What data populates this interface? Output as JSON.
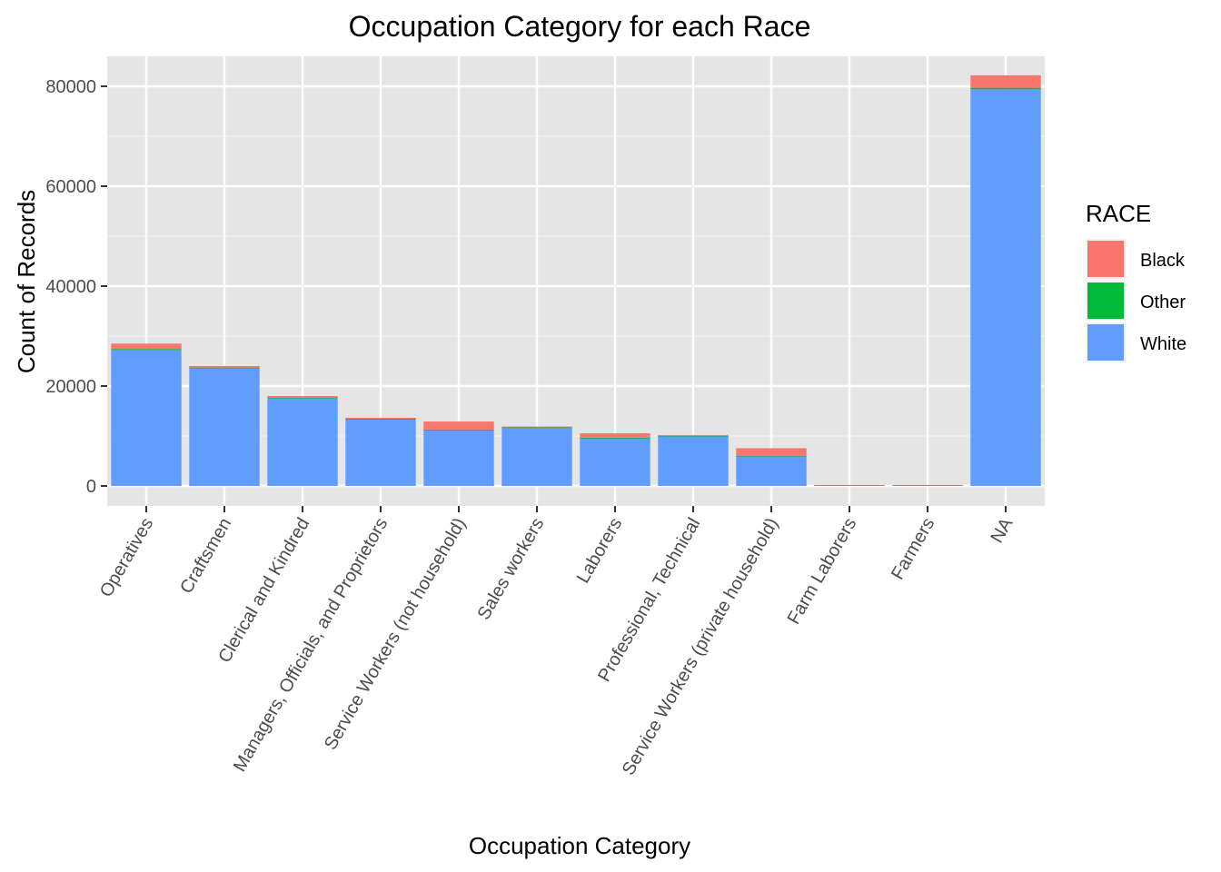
{
  "chart_data": {
    "type": "bar",
    "stacked": true,
    "title": "Occupation Category for each Race",
    "xlabel": "Occupation Category",
    "ylabel": "Count of Records",
    "categories": [
      "Operatives",
      "Craftsmen",
      "Clerical and Kindred",
      "Managers, Officials, and Proprietors",
      "Service Workers (not household)",
      "Sales workers",
      "Laborers",
      "Professional, Technical",
      "Service Workers (private household)",
      "Farm Laborers",
      "Farmers",
      "NA"
    ],
    "series": [
      {
        "name": "White",
        "color": "#619CFF",
        "values": [
          27200,
          23600,
          17600,
          13400,
          11200,
          11700,
          9600,
          10000,
          6000,
          150,
          150,
          79400
        ]
      },
      {
        "name": "Other",
        "color": "#00BA38",
        "values": [
          200,
          100,
          100,
          50,
          100,
          50,
          50,
          50,
          50,
          10,
          10,
          300
        ]
      },
      {
        "name": "Black",
        "color": "#F8766D",
        "values": [
          1100,
          300,
          300,
          200,
          1600,
          150,
          900,
          150,
          1500,
          40,
          40,
          2500
        ]
      }
    ],
    "ylim": [
      -4000,
      86000
    ],
    "yticks": [
      0,
      20000,
      40000,
      60000,
      80000
    ],
    "ytick_labels": [
      "0",
      "20000",
      "40000",
      "60000",
      "80000"
    ],
    "grid": true,
    "legend": {
      "title": "RACE",
      "position": "right",
      "items": [
        "Black",
        "Other",
        "White"
      ]
    }
  }
}
